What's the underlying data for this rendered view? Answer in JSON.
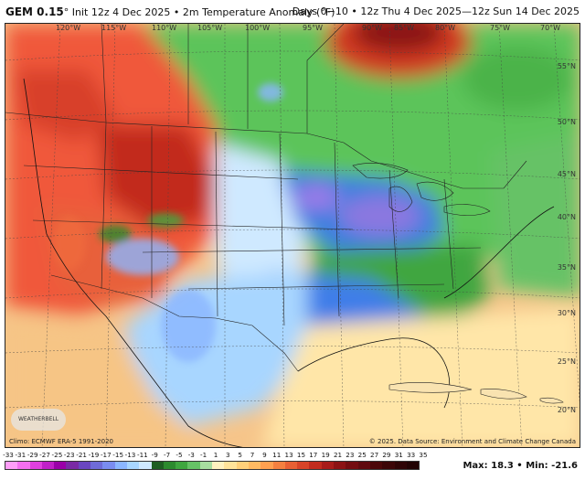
{
  "header": {
    "model": "GEM 0.15",
    "init": "° Init 12z 4 Dec 2025 • 2m Temperature Anomaly (°F)",
    "range": "Days 0−10 • 12z Thu 4 Dec 2025—12z Sun 14 Dec 2025"
  },
  "map": {
    "longitude_labels": [
      "120°W",
      "115°W",
      "110°W",
      "105°W",
      "100°W",
      "95°W",
      "90°W",
      "85°W",
      "80°W",
      "75°W",
      "70°W"
    ],
    "latitude_labels": [
      "55°N",
      "50°N",
      "45°N",
      "40°N",
      "35°N",
      "30°N",
      "25°N",
      "20°N"
    ],
    "anomaly_regions": {
      "hudson_bay_warm": "very warm (dark red)",
      "pacific_northwest_warm": "warm (red/orange)",
      "southwest_desert_warm": "warm (red)",
      "canada_prairies_north": "cool (green)",
      "great_lakes_midwest": "cold (blue/purple)",
      "southeast_us": "cool (green/blue)",
      "texas_mexico": "near normal to cool (light blue)",
      "gulf_of_mexico_ocean": "slightly warm (pale yellow)",
      "pacific_ocean": "slightly warm (tan/orange)"
    }
  },
  "logo": {
    "text": "WEATHERBELL"
  },
  "footer": {
    "climo": "Climo: ECMWF ERA-5 1991-2020",
    "copyright": "© 2025. Data Source: Environment and Climate Change Canada"
  },
  "legend": {
    "ticks": [
      "-33",
      "-31",
      "-29",
      "-27",
      "-25",
      "-23",
      "-21",
      "-19",
      "-17",
      "-15",
      "-13",
      "-11",
      "-9",
      "-7",
      "-5",
      "-3",
      "-1",
      "1",
      "3",
      "5",
      "7",
      "9",
      "11",
      "13",
      "15",
      "17",
      "19",
      "21",
      "23",
      "25",
      "27",
      "29",
      "31",
      "33",
      "35"
    ],
    "colors": [
      "#ff9ef8",
      "#f56ff0",
      "#e040df",
      "#c020c8",
      "#9a00a8",
      "#7a2aa5",
      "#6a46c0",
      "#6f6bd8",
      "#7a8cf0",
      "#8bb6ff",
      "#a8d6ff",
      "#cfe9ff",
      "#1e5e22",
      "#2c8a2e",
      "#3fa63f",
      "#66c266",
      "#a8dea0",
      "#fff2c0",
      "#ffe39a",
      "#ffd07a",
      "#ffba62",
      "#ffa050",
      "#f48040",
      "#e86034",
      "#d84428",
      "#c22c1e",
      "#a81c1a",
      "#8c1214",
      "#740c10",
      "#600a0e",
      "#4c080a",
      "#3c0608",
      "#2e0406",
      "#220304"
    ],
    "max_label": "Max:",
    "max_value": "18.3",
    "min_label": "Min:",
    "min_value": "-21.6"
  }
}
